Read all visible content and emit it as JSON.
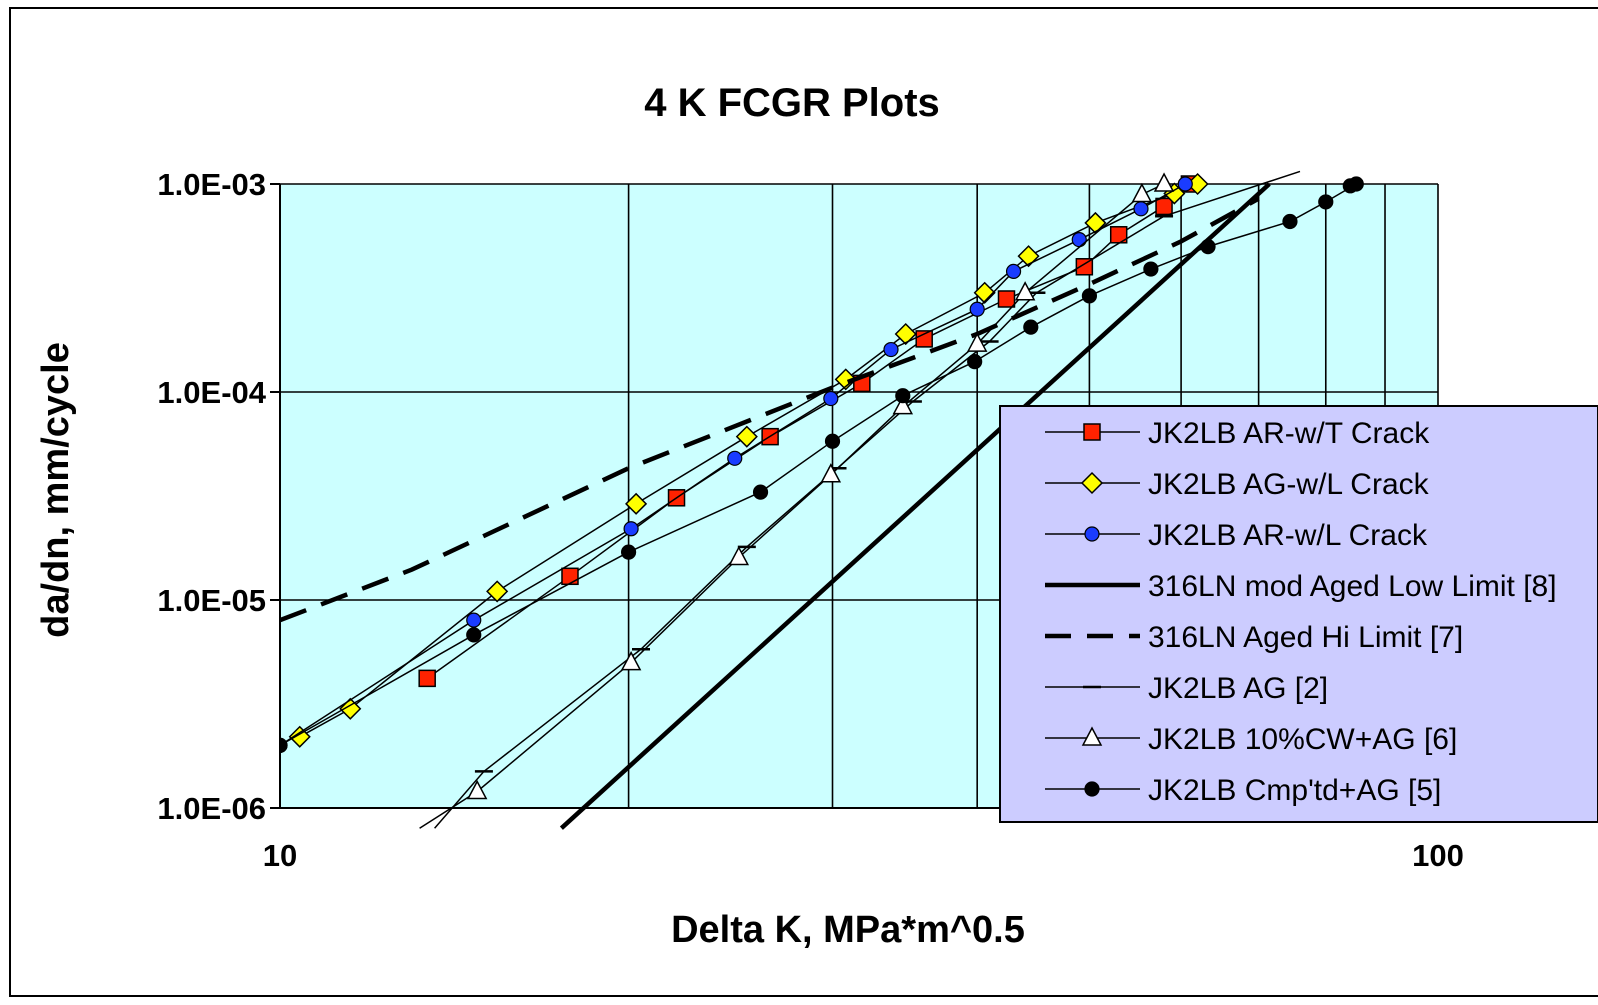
{
  "chart_data": {
    "type": "scatter",
    "title": "4 K FCGR Plots",
    "xlabel": "Delta K, MPa*m^0.5",
    "ylabel": "da/dn, mm/cycle",
    "xscale": "log",
    "yscale": "log",
    "xlim": [
      10,
      100
    ],
    "ylim": [
      1e-06,
      0.001
    ],
    "x_ticks": [
      10,
      100
    ],
    "x_tick_labels": [
      "10",
      "100"
    ],
    "y_ticks": [
      1e-06,
      1e-05,
      0.0001,
      0.001
    ],
    "y_tick_labels": [
      "1.0E-06",
      "1.0E-05",
      "1.0E-04",
      "1.0E-03"
    ],
    "grid": true,
    "plot_background": "#ccffff",
    "legend_background": "#ccccff",
    "legend_position": "right",
    "series": [
      {
        "name": "JK2LB AR-w/T Crack",
        "marker": "square",
        "color": "#ff2200",
        "line": "thin",
        "x": [
          13.4,
          17.8,
          22.0,
          26.5,
          31.8,
          36.0,
          42.4,
          49.5,
          53.0,
          58.0,
          61.0
        ],
        "y": [
          4.2e-06,
          1.3e-05,
          3.1e-05,
          6.1e-05,
          0.00011,
          0.00018,
          0.00028,
          0.0004,
          0.00057,
          0.00078,
          0.001
        ]
      },
      {
        "name": "JK2LB AG-w/L Crack",
        "marker": "diamond",
        "color": "#ffff00",
        "line": "thin",
        "x": [
          10.4,
          11.5,
          15.4,
          20.3,
          25.3,
          30.8,
          34.7,
          40.6,
          44.3,
          50.6,
          59.2,
          62.0
        ],
        "y": [
          2.2e-06,
          3e-06,
          1.1e-05,
          2.9e-05,
          6.1e-05,
          0.000115,
          0.00019,
          0.0003,
          0.00045,
          0.00065,
          0.0009,
          0.001
        ]
      },
      {
        "name": "JK2LB AR-w/L Crack",
        "marker": "circle",
        "color": "#1a3cff",
        "line": "thin",
        "x": [
          10.0,
          14.7,
          20.1,
          24.7,
          29.9,
          33.7,
          40.0,
          43.0,
          49.0,
          55.4,
          60.5
        ],
        "y": [
          2e-06,
          8e-06,
          2.2e-05,
          4.8e-05,
          9.3e-05,
          0.00016,
          0.00025,
          0.00038,
          0.00054,
          0.00076,
          0.001
        ]
      },
      {
        "name": "316LN mod Aged Low Limit [8]",
        "marker": "none",
        "color": "#000000",
        "line": "thick",
        "x": [
          17.5,
          71.5
        ],
        "y": [
          8e-07,
          0.001
        ]
      },
      {
        "name": "316LN Aged Hi Limit [7]",
        "marker": "none",
        "color": "#000000",
        "line": "dashed",
        "x": [
          10.0,
          13.0,
          20.0,
          30.0,
          40.0,
          50.0,
          60.0,
          70.0
        ],
        "y": [
          8e-06,
          1.4e-05,
          4.3e-05,
          0.000105,
          0.00019,
          0.00033,
          0.00053,
          0.00085
        ]
      },
      {
        "name": "JK2LB AG  [2]",
        "marker": "dash",
        "color": "#000000",
        "line": "thin",
        "x": [
          13.6,
          15.0,
          20.5,
          25.3,
          30.3,
          35.2,
          41.0,
          45.0,
          58.0,
          76.0
        ],
        "y": [
          8e-07,
          1.5e-06,
          5.8e-06,
          1.8e-05,
          4.3e-05,
          9e-05,
          0.000175,
          0.0003,
          0.0007,
          0.00115
        ]
      },
      {
        "name": "JK2LB 10%CW+AG [6]",
        "marker": "triangle",
        "color": "#ffffff",
        "line": "thin",
        "x": [
          13.2,
          14.8,
          20.1,
          24.9,
          29.9,
          34.5,
          40.0,
          44.0,
          55.5,
          58.0
        ],
        "y": [
          8e-07,
          1.2e-06,
          5e-06,
          1.6e-05,
          4e-05,
          8.5e-05,
          0.00017,
          0.0003,
          0.00089,
          0.001
        ]
      },
      {
        "name": "JK2LB  Cmp'td+AG [5]",
        "marker": "circle",
        "color": "#000000",
        "line": "thin",
        "x": [
          10.0,
          14.7,
          20.0,
          26.0,
          30.0,
          34.5,
          39.8,
          44.5,
          50.0,
          56.5,
          63.3,
          74.5,
          80.0,
          85.0,
          84.0
        ],
        "y": [
          2e-06,
          6.8e-06,
          1.7e-05,
          3.3e-05,
          5.8e-05,
          9.6e-05,
          0.00014,
          0.000205,
          0.00029,
          0.00039,
          0.0005,
          0.00066,
          0.00082,
          0.001,
          0.00098
        ]
      }
    ]
  }
}
